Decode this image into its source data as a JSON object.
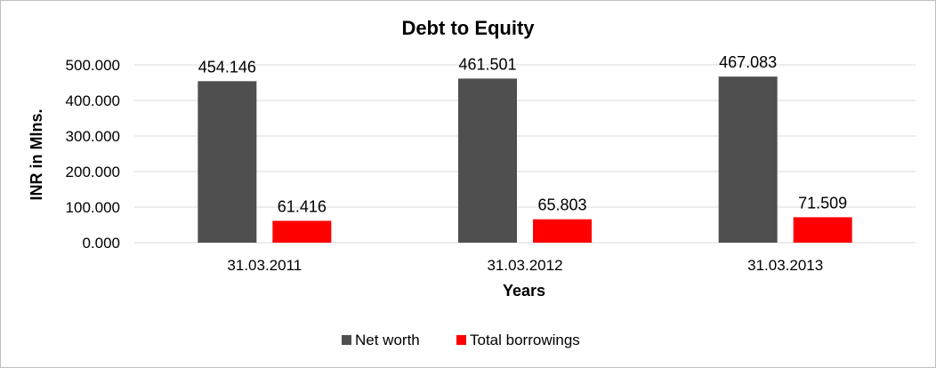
{
  "chart_data": {
    "type": "bar",
    "title": "Debt to Equity",
    "xlabel": "Years",
    "ylabel": "INR in Mlns.",
    "categories": [
      "31.03.2011",
      "31.03.2012",
      "31.03.2013"
    ],
    "series": [
      {
        "name": "Net worth",
        "values": [
          454.146,
          461.501,
          467.083
        ],
        "color": "#4f4f4f",
        "labels": [
          "454.146",
          "461.501",
          "467.083"
        ]
      },
      {
        "name": "Total borrowings",
        "values": [
          61.416,
          65.803,
          71.509
        ],
        "color": "#ff0000",
        "labels": [
          "61.416",
          "65.803",
          "71.509"
        ]
      }
    ],
    "ylim": [
      0,
      500
    ],
    "yticks": [
      {
        "value": 0,
        "label": "0.000"
      },
      {
        "value": 100,
        "label": "100.000"
      },
      {
        "value": 200,
        "label": "200.000"
      },
      {
        "value": 300,
        "label": "300.000"
      },
      {
        "value": 400,
        "label": "400.000"
      },
      {
        "value": 500,
        "label": "500.000"
      }
    ],
    "grid": true,
    "gridColor": "#d9d9d9",
    "legend": "bottom"
  }
}
